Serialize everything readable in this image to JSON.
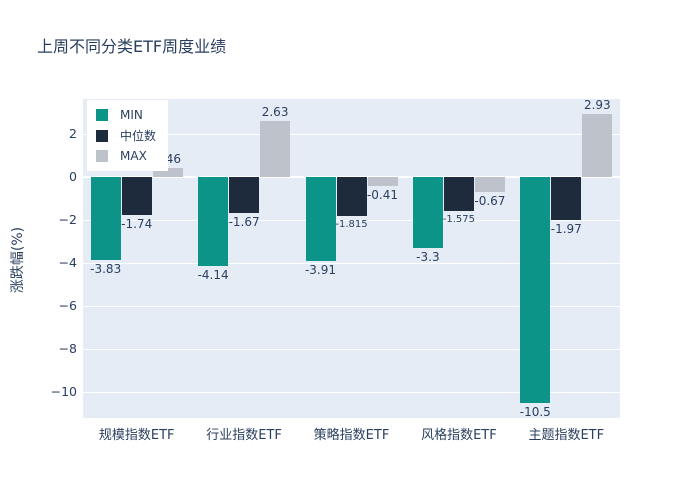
{
  "chart": {
    "title": "上周不同分类ETF周度业绩"
  },
  "chart_data": {
    "type": "bar",
    "title": "上周不同分类ETF周度业绩",
    "xlabel": "",
    "ylabel": "涨跌幅(%)",
    "categories": [
      "规模指数ETF",
      "行业指数ETF",
      "策略指数ETF",
      "风格指数ETF",
      "主题指数ETF"
    ],
    "series": [
      {
        "key": "min",
        "name": "MIN",
        "color": "#0d9488",
        "values": [
          -3.83,
          -4.14,
          -3.91,
          -3.3,
          -10.5
        ]
      },
      {
        "key": "median",
        "name": "中位数",
        "color": "#1e2b3c",
        "values": [
          -1.74,
          -1.67,
          -1.815,
          -1.575,
          -1.97
        ]
      },
      {
        "key": "max",
        "name": "MAX",
        "color": "#bdc2cb",
        "values": [
          0.46,
          2.63,
          -0.41,
          -0.67,
          2.93
        ]
      }
    ],
    "ytick_values": [
      2,
      0,
      -2,
      -4,
      -6,
      -8,
      -10
    ],
    "ytick_labels": [
      "2",
      "0",
      "−2",
      "−4",
      "−6",
      "−8",
      "−10"
    ],
    "ylim": [
      -11.2,
      3.65
    ],
    "grid": true,
    "legend_position": "top-left-inside",
    "colors": {
      "plot_background": "#e5ecf6",
      "gridline": "#ffffff",
      "text": "#2a3f5f"
    }
  }
}
